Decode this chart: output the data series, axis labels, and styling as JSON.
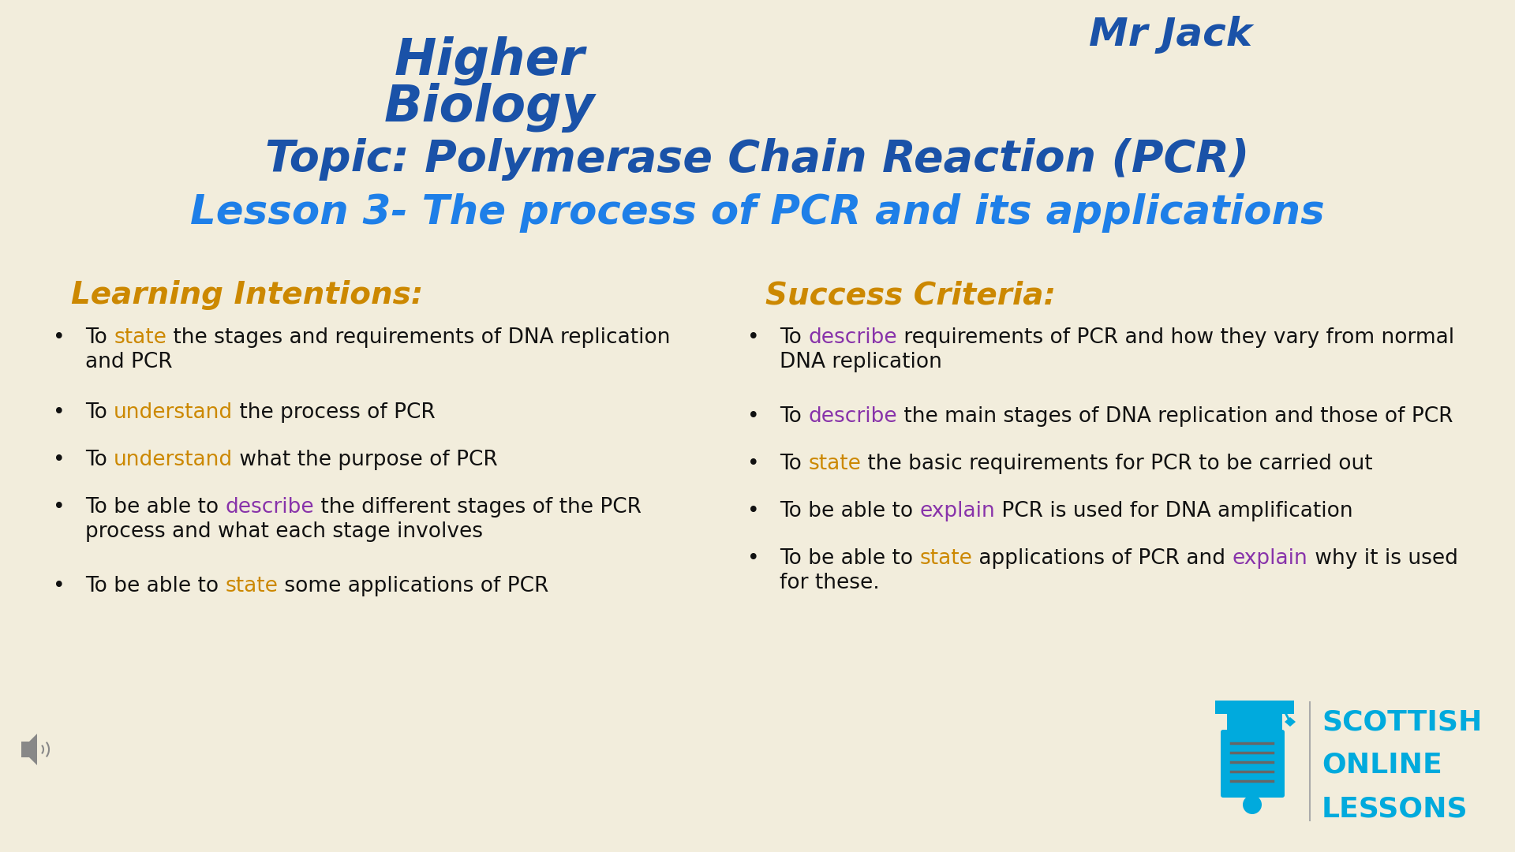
{
  "bg_color": "#f2eddc",
  "title_higher": "Higher",
  "title_biology": "Biology",
  "title_topic": "Topic: Polymerase Chain Reaction (PCR)",
  "title_lesson": "Lesson 3- The process of PCR and its applications",
  "mr_jack": "Mr Jack",
  "color_blue": "#1a52a8",
  "color_cyan_bright": "#1e90ff",
  "color_orange": "#cc8800",
  "color_purple": "#8833aa",
  "color_black": "#111111",
  "learning_title": "Learning Intentions:",
  "success_title": "Success Criteria:",
  "logo_text1": "SCOTTISH",
  "logo_text2": "ONLINE",
  "logo_text3": "LESSONS",
  "logo_color": "#00aadd"
}
